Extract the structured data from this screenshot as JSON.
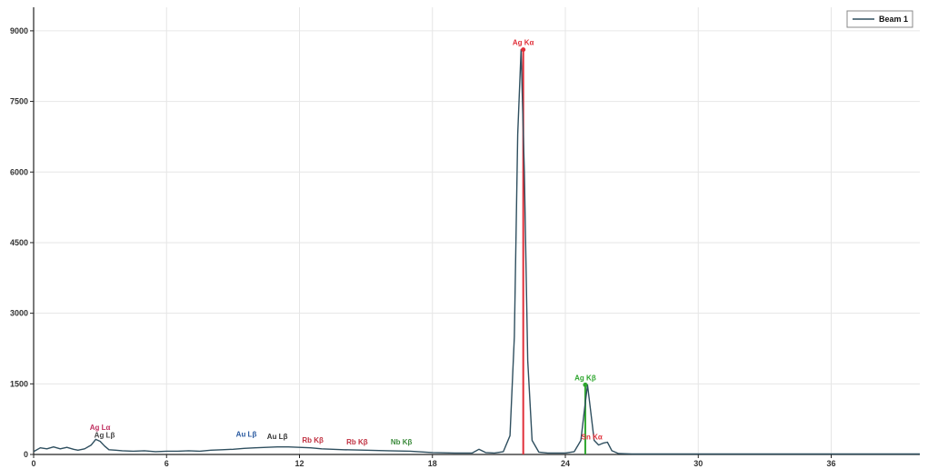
{
  "chart_data": {
    "type": "line",
    "xlim": [
      0,
      40
    ],
    "ylim": [
      0,
      9500
    ],
    "x_ticks": [
      "0",
      "6",
      "12",
      "18",
      "24",
      "30",
      "36"
    ],
    "y_ticks": [
      "0",
      "1500",
      "3000",
      "4500",
      "6000",
      "7500",
      "9000"
    ],
    "grid": true,
    "legend_position": "top-right",
    "colors": {
      "spectrum": "#2f4f5f",
      "ka_marker": "#e0303a",
      "kb_marker": "#2ea62e",
      "grid": "#e6e6e6",
      "axis": "#222222"
    },
    "series": [
      {
        "name": "Beam 1",
        "x": [
          0.0,
          0.3,
          0.6,
          0.9,
          1.2,
          1.5,
          1.8,
          2.0,
          2.3,
          2.6,
          2.8,
          3.0,
          3.2,
          3.4,
          3.7,
          4.0,
          4.5,
          5.0,
          5.5,
          6.0,
          6.5,
          7.0,
          7.5,
          8.0,
          8.5,
          9.0,
          9.5,
          10.0,
          10.5,
          11.0,
          11.5,
          12.0,
          12.5,
          13.0,
          14.0,
          15.0,
          16.0,
          17.0,
          18.0,
          19.0,
          19.8,
          20.1,
          20.4,
          20.8,
          21.2,
          21.5,
          21.7,
          21.85,
          22.0,
          22.15,
          22.3,
          22.5,
          22.8,
          23.2,
          23.6,
          24.0,
          24.4,
          24.7,
          24.85,
          25.0,
          25.15,
          25.3,
          25.5,
          25.7,
          25.9,
          26.1,
          26.4,
          27.0,
          28.0,
          30.0,
          32.0,
          34.0,
          36.0,
          38.0,
          40.0
        ],
        "values": [
          60,
          140,
          120,
          160,
          120,
          150,
          110,
          90,
          120,
          200,
          320,
          280,
          180,
          100,
          90,
          80,
          70,
          80,
          60,
          70,
          70,
          80,
          70,
          90,
          100,
          110,
          130,
          140,
          150,
          160,
          160,
          150,
          140,
          120,
          100,
          90,
          80,
          70,
          40,
          30,
          30,
          110,
          40,
          30,
          60,
          400,
          2500,
          6800,
          8600,
          6000,
          2000,
          300,
          50,
          30,
          30,
          30,
          60,
          300,
          900,
          1480,
          900,
          300,
          200,
          240,
          260,
          80,
          20,
          10,
          10,
          10,
          10,
          10,
          10,
          10,
          10
        ]
      }
    ],
    "annotations": [
      {
        "label": "Ag Kα",
        "x": 22.1,
        "y": 8600,
        "color": "#e0303a",
        "marker": true
      },
      {
        "label": "Ag Kβ",
        "x": 24.9,
        "y": 1480,
        "color": "#2ea62e",
        "marker": true
      },
      {
        "label": "Sn Kα",
        "x": 25.2,
        "y": 220,
        "color": "#e0303a",
        "marker": false
      },
      {
        "label": "Ag Lα",
        "x": 3.0,
        "y": 420,
        "color": "#c03060",
        "marker": false
      },
      {
        "label": "Ag Lβ",
        "x": 3.2,
        "y": 260,
        "color": "#444444",
        "marker": false
      },
      {
        "label": "Au Lβ",
        "x": 9.6,
        "y": 280,
        "color": "#2a5aa0",
        "marker": false
      },
      {
        "label": "Au Lβ",
        "x": 11.0,
        "y": 230,
        "color": "#333333",
        "marker": false
      },
      {
        "label": "Rb Kβ",
        "x": 12.6,
        "y": 150,
        "color": "#c03040",
        "marker": false
      },
      {
        "label": "Rb Kβ",
        "x": 14.6,
        "y": 120,
        "color": "#c03040",
        "marker": false
      },
      {
        "label": "Nb Kβ",
        "x": 16.6,
        "y": 120,
        "color": "#3a8a3a",
        "marker": false
      }
    ]
  }
}
